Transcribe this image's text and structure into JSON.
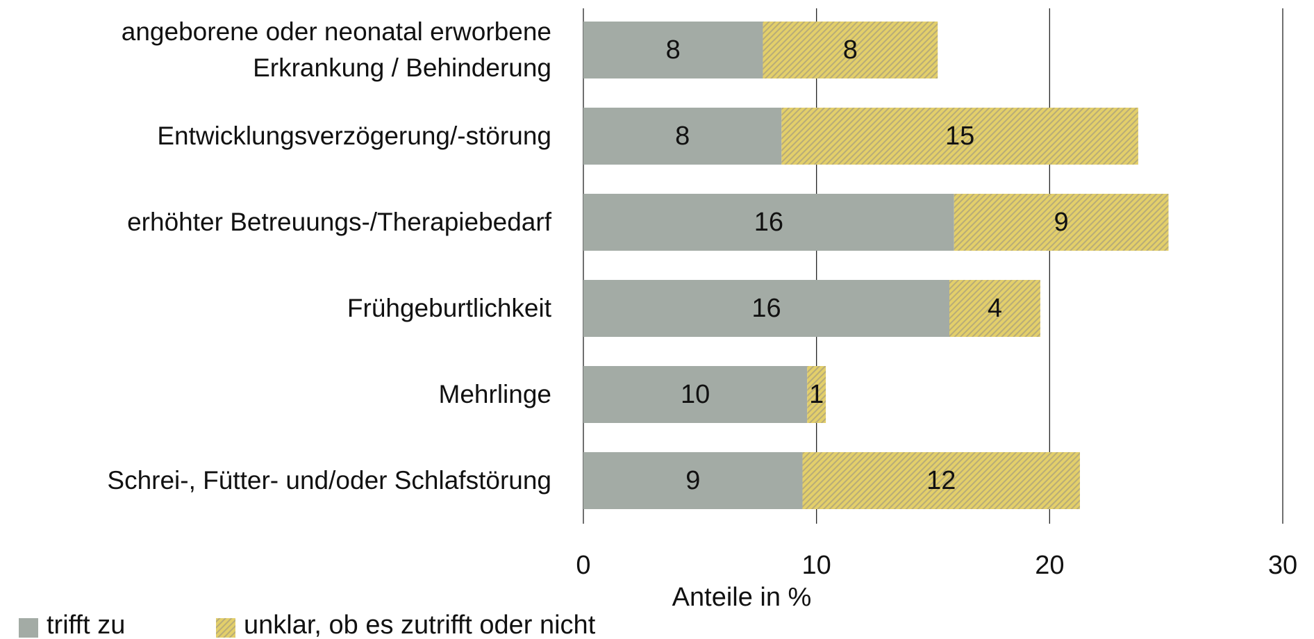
{
  "chart_data": {
    "type": "stacked-barh",
    "categories": [
      "angeborene oder neonatal erworbene Erkrankung / Behinderung",
      "Entwicklungsverzögerung/-störung",
      "erhöhter Betreuungs-/Therapiebedarf",
      "Frühgeburtlichkeit",
      "Mehrlinge",
      "Schrei-, Fütter- und/oder Schlafstörung"
    ],
    "series": [
      {
        "name": "trifft zu",
        "color": "#a3aba5",
        "values": [
          7.7,
          8.5,
          15.9,
          15.7,
          9.6,
          9.4
        ],
        "value_labels": [
          "8",
          "8",
          "16",
          "16",
          "10",
          "9"
        ]
      },
      {
        "name": "unklar, ob es zutrifft oder nicht",
        "color": "#e3cf6a",
        "hatch": true,
        "values": [
          7.5,
          15.3,
          9.2,
          3.9,
          0.8,
          11.9
        ],
        "value_labels": [
          "8",
          "15",
          "9",
          "4",
          "1",
          "12"
        ]
      }
    ],
    "xlabel": "Anteile in %",
    "xlim": [
      0,
      30
    ],
    "xticks": [
      0,
      10,
      20,
      30
    ],
    "grid": true
  }
}
